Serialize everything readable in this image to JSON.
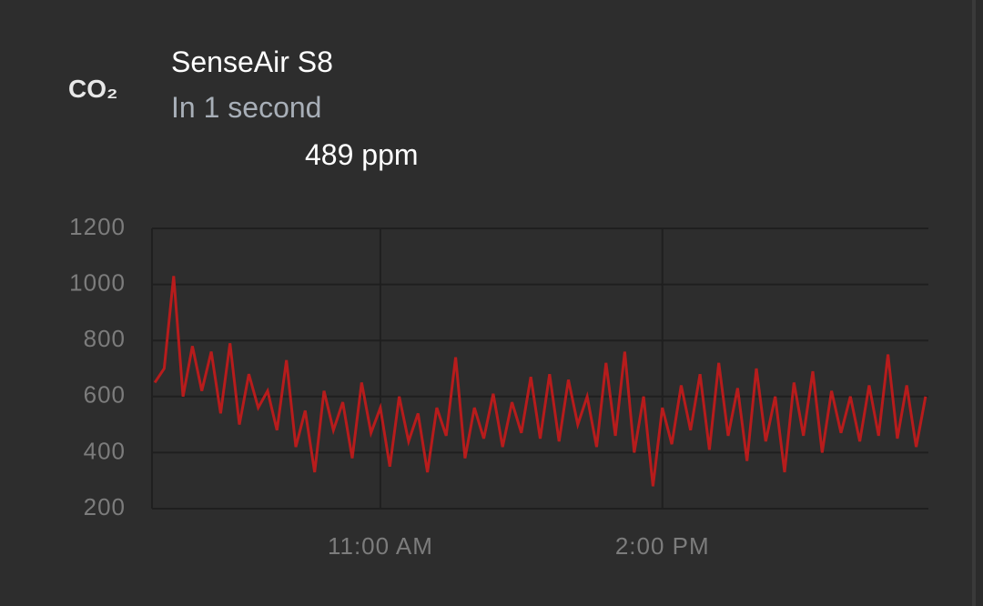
{
  "card": {
    "icon_label": "CO₂",
    "title": "SenseAir S8",
    "subtitle": "In 1 second",
    "state": "489 ppm"
  },
  "chart_data": {
    "type": "line",
    "color": "#b71c1c",
    "grid": true,
    "x": [
      8.6,
      8.7,
      8.8,
      8.9,
      9.0,
      9.1,
      9.2,
      9.3,
      9.4,
      9.5,
      9.6,
      9.7,
      9.8,
      9.9,
      10.0,
      10.1,
      10.2,
      10.3,
      10.4,
      10.5,
      10.6,
      10.7,
      10.8,
      10.9,
      11.0,
      11.1,
      11.2,
      11.3,
      11.4,
      11.5,
      11.6,
      11.7,
      11.8,
      11.9,
      12.0,
      12.1,
      12.2,
      12.3,
      12.4,
      12.5,
      12.6,
      12.7,
      12.8,
      12.9,
      13.0,
      13.1,
      13.2,
      13.3,
      13.4,
      13.5,
      13.6,
      13.7,
      13.8,
      13.9,
      14.0,
      14.1,
      14.2,
      14.3,
      14.4,
      14.5,
      14.6,
      14.7,
      14.8,
      14.9,
      15.0,
      15.1,
      15.2,
      15.3,
      15.4,
      15.5,
      15.6,
      15.7,
      15.8,
      15.9,
      16.0,
      16.1,
      16.2,
      16.3,
      16.4,
      16.5,
      16.6,
      16.7,
      16.8
    ],
    "values": [
      650,
      700,
      1030,
      600,
      780,
      620,
      760,
      540,
      790,
      500,
      680,
      560,
      620,
      480,
      730,
      420,
      550,
      330,
      620,
      480,
      580,
      380,
      650,
      470,
      560,
      350,
      600,
      440,
      540,
      330,
      560,
      460,
      740,
      380,
      560,
      450,
      610,
      420,
      580,
      470,
      670,
      450,
      680,
      440,
      660,
      500,
      600,
      420,
      720,
      460,
      760,
      400,
      600,
      280,
      560,
      430,
      640,
      480,
      680,
      410,
      720,
      460,
      630,
      370,
      700,
      440,
      600,
      330,
      650,
      460,
      690,
      400,
      620,
      470,
      600,
      440,
      640,
      460,
      750,
      450,
      640,
      420,
      600
    ],
    "xlim": [
      8.57,
      16.83
    ],
    "xticks": [
      {
        "value": 11,
        "label": "11:00 AM"
      },
      {
        "value": 14,
        "label": "2:00 PM"
      }
    ],
    "ylim": [
      200,
      1200
    ],
    "yticks": [
      200,
      400,
      600,
      800,
      1000,
      1200
    ]
  }
}
